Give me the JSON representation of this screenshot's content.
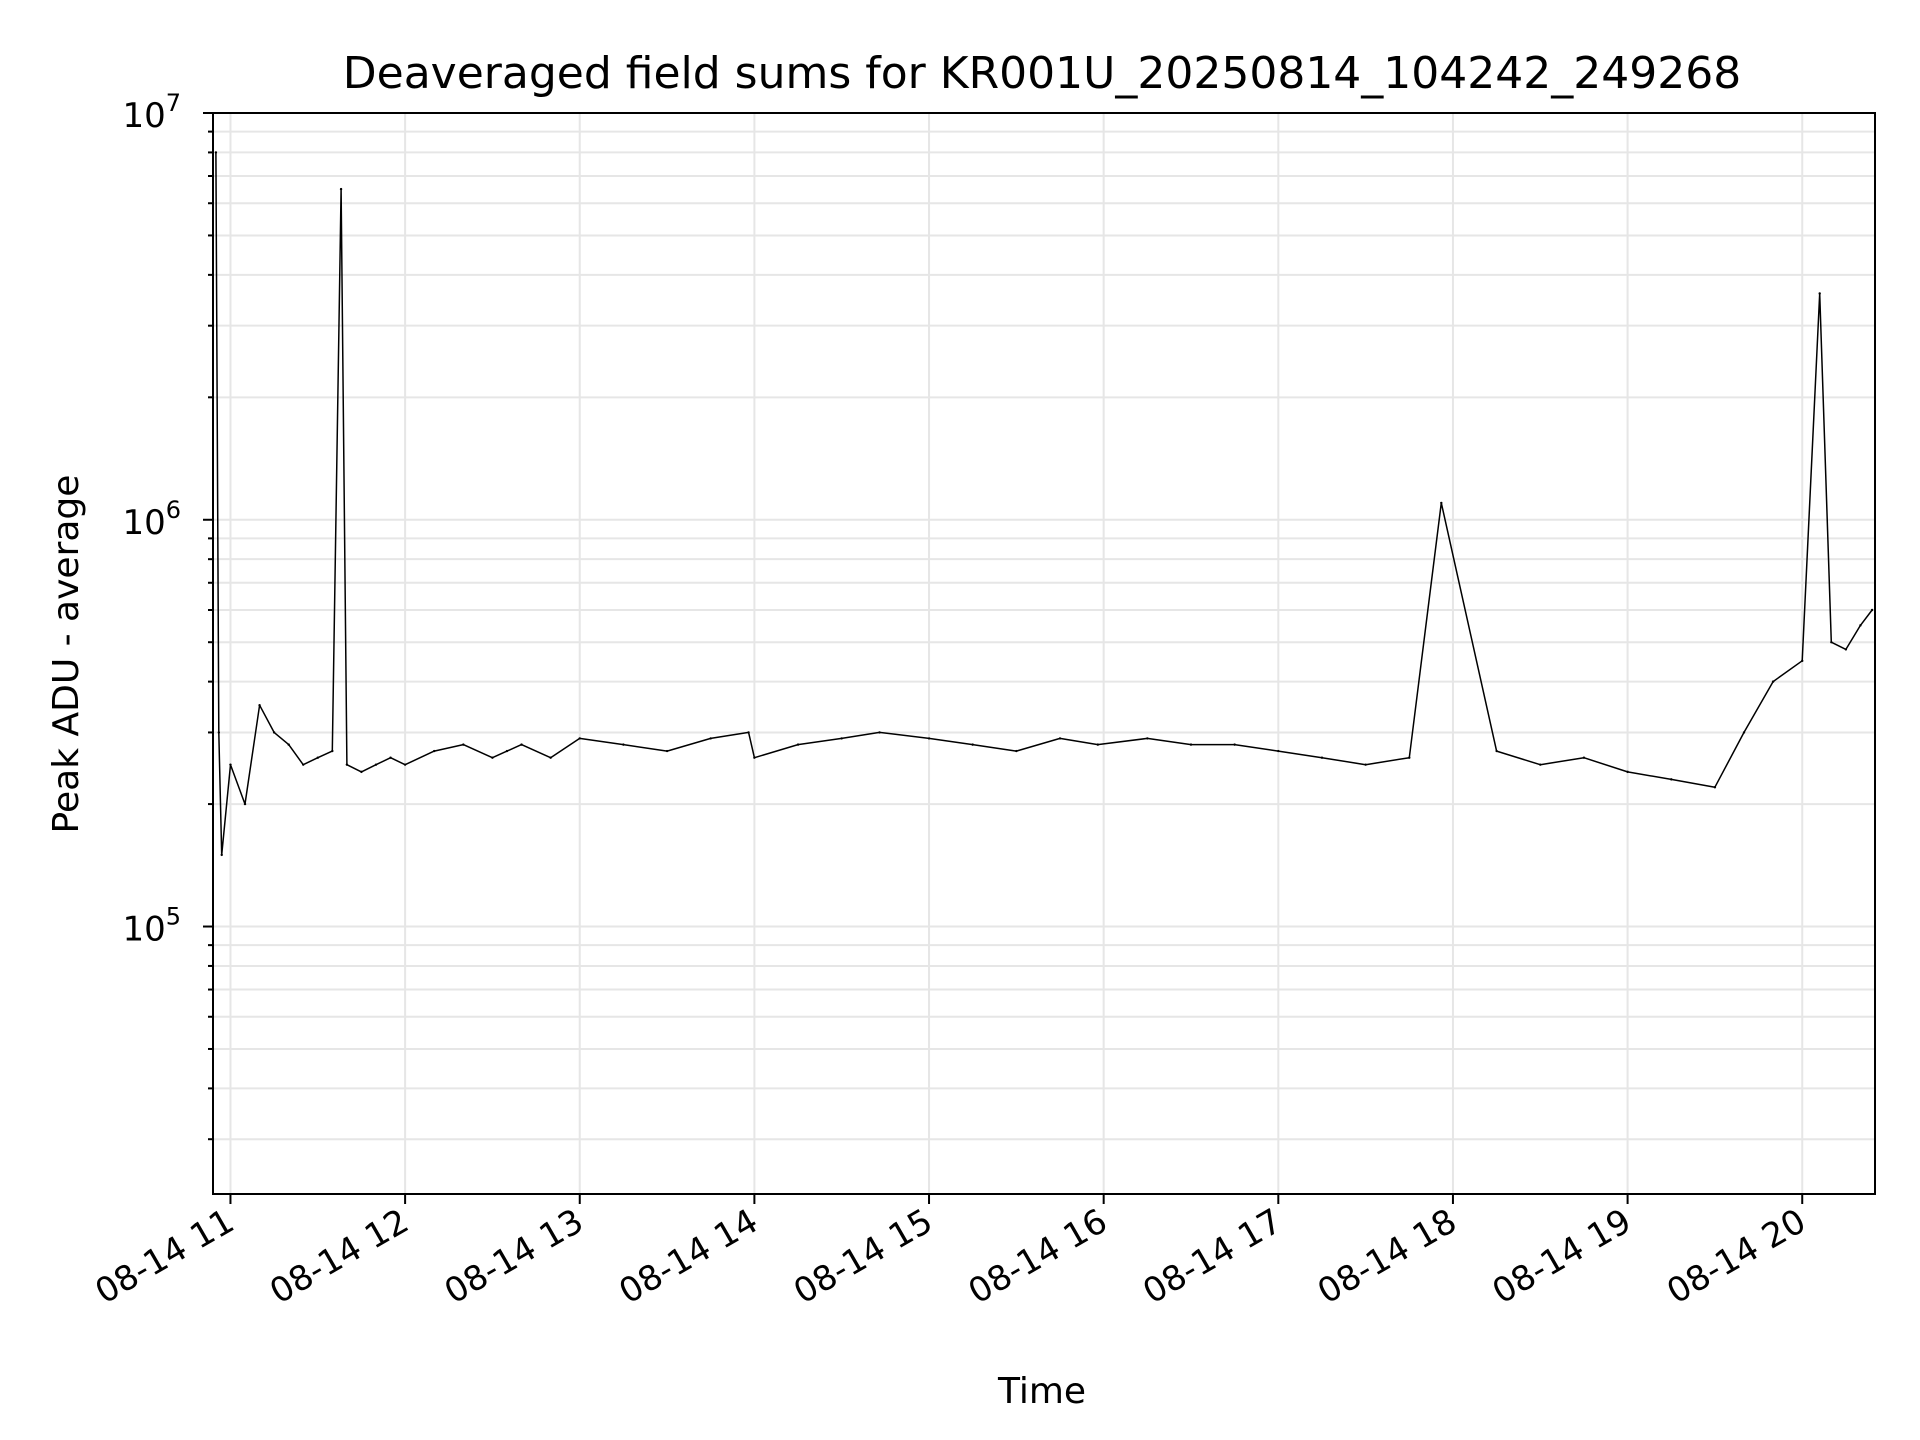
{
  "chart_data": {
    "type": "line",
    "title": "Deaveraged field sums for KR001U_20250814_104242_249268",
    "xlabel": "Time",
    "ylabel": "Peak ADU - average",
    "yscale": "log",
    "ylim": [
      22000,
      10000000
    ],
    "xlim": [
      "2025-08-14 10:54",
      "2025-08-14 20:25"
    ],
    "grid": true,
    "y_ticks": [
      {
        "value": 100000,
        "base": "10",
        "exp": "5"
      },
      {
        "value": 1000000,
        "base": "10",
        "exp": "6"
      },
      {
        "value": 10000000,
        "base": "10",
        "exp": "7"
      }
    ],
    "x_ticks": [
      {
        "value": "2025-08-14 11:00",
        "label": "08-14 11"
      },
      {
        "value": "2025-08-14 12:00",
        "label": "08-14 12"
      },
      {
        "value": "2025-08-14 13:00",
        "label": "08-14 13"
      },
      {
        "value": "2025-08-14 14:00",
        "label": "08-14 14"
      },
      {
        "value": "2025-08-14 15:00",
        "label": "08-14 15"
      },
      {
        "value": "2025-08-14 16:00",
        "label": "08-14 16"
      },
      {
        "value": "2025-08-14 17:00",
        "label": "08-14 17"
      },
      {
        "value": "2025-08-14 18:00",
        "label": "08-14 18"
      },
      {
        "value": "2025-08-14 19:00",
        "label": "08-14 19"
      },
      {
        "value": "2025-08-14 20:00",
        "label": "08-14 20"
      }
    ],
    "series": [
      {
        "color": "#000000",
        "x": [
          "2025-08-14 10:55",
          "2025-08-14 10:56",
          "2025-08-14 10:57",
          "2025-08-14 11:00",
          "2025-08-14 11:05",
          "2025-08-14 11:10",
          "2025-08-14 11:15",
          "2025-08-14 11:20",
          "2025-08-14 11:25",
          "2025-08-14 11:30",
          "2025-08-14 11:35",
          "2025-08-14 11:38",
          "2025-08-14 11:40",
          "2025-08-14 11:45",
          "2025-08-14 11:50",
          "2025-08-14 11:55",
          "2025-08-14 12:00",
          "2025-08-14 12:10",
          "2025-08-14 12:20",
          "2025-08-14 12:30",
          "2025-08-14 12:35",
          "2025-08-14 12:40",
          "2025-08-14 12:50",
          "2025-08-14 13:00",
          "2025-08-14 13:15",
          "2025-08-14 13:30",
          "2025-08-14 13:45",
          "2025-08-14 13:58",
          "2025-08-14 14:00",
          "2025-08-14 14:15",
          "2025-08-14 14:30",
          "2025-08-14 14:43",
          "2025-08-14 15:00",
          "2025-08-14 15:15",
          "2025-08-14 15:30",
          "2025-08-14 15:45",
          "2025-08-14 15:58",
          "2025-08-14 16:15",
          "2025-08-14 16:30",
          "2025-08-14 16:45",
          "2025-08-14 17:00",
          "2025-08-14 17:15",
          "2025-08-14 17:30",
          "2025-08-14 17:45",
          "2025-08-14 17:56",
          "2025-08-14 18:15",
          "2025-08-14 18:30",
          "2025-08-14 18:45",
          "2025-08-14 19:00",
          "2025-08-14 19:15",
          "2025-08-14 19:30",
          "2025-08-14 19:40",
          "2025-08-14 19:50",
          "2025-08-14 20:00",
          "2025-08-14 20:06",
          "2025-08-14 20:10",
          "2025-08-14 20:15",
          "2025-08-14 20:20",
          "2025-08-14 20:24"
        ],
        "y": [
          8000000,
          300000,
          150000,
          250000,
          200000,
          350000,
          300000,
          280000,
          250000,
          260000,
          270000,
          6500000,
          250000,
          240000,
          250000,
          260000,
          250000,
          270000,
          280000,
          260000,
          270000,
          280000,
          260000,
          290000,
          280000,
          270000,
          290000,
          300000,
          260000,
          280000,
          290000,
          300000,
          290000,
          280000,
          270000,
          290000,
          280000,
          290000,
          280000,
          280000,
          270000,
          260000,
          250000,
          260000,
          1100000,
          270000,
          250000,
          260000,
          240000,
          230000,
          220000,
          300000,
          400000,
          450000,
          3600000,
          500000,
          480000,
          550000,
          600000
        ]
      }
    ]
  }
}
